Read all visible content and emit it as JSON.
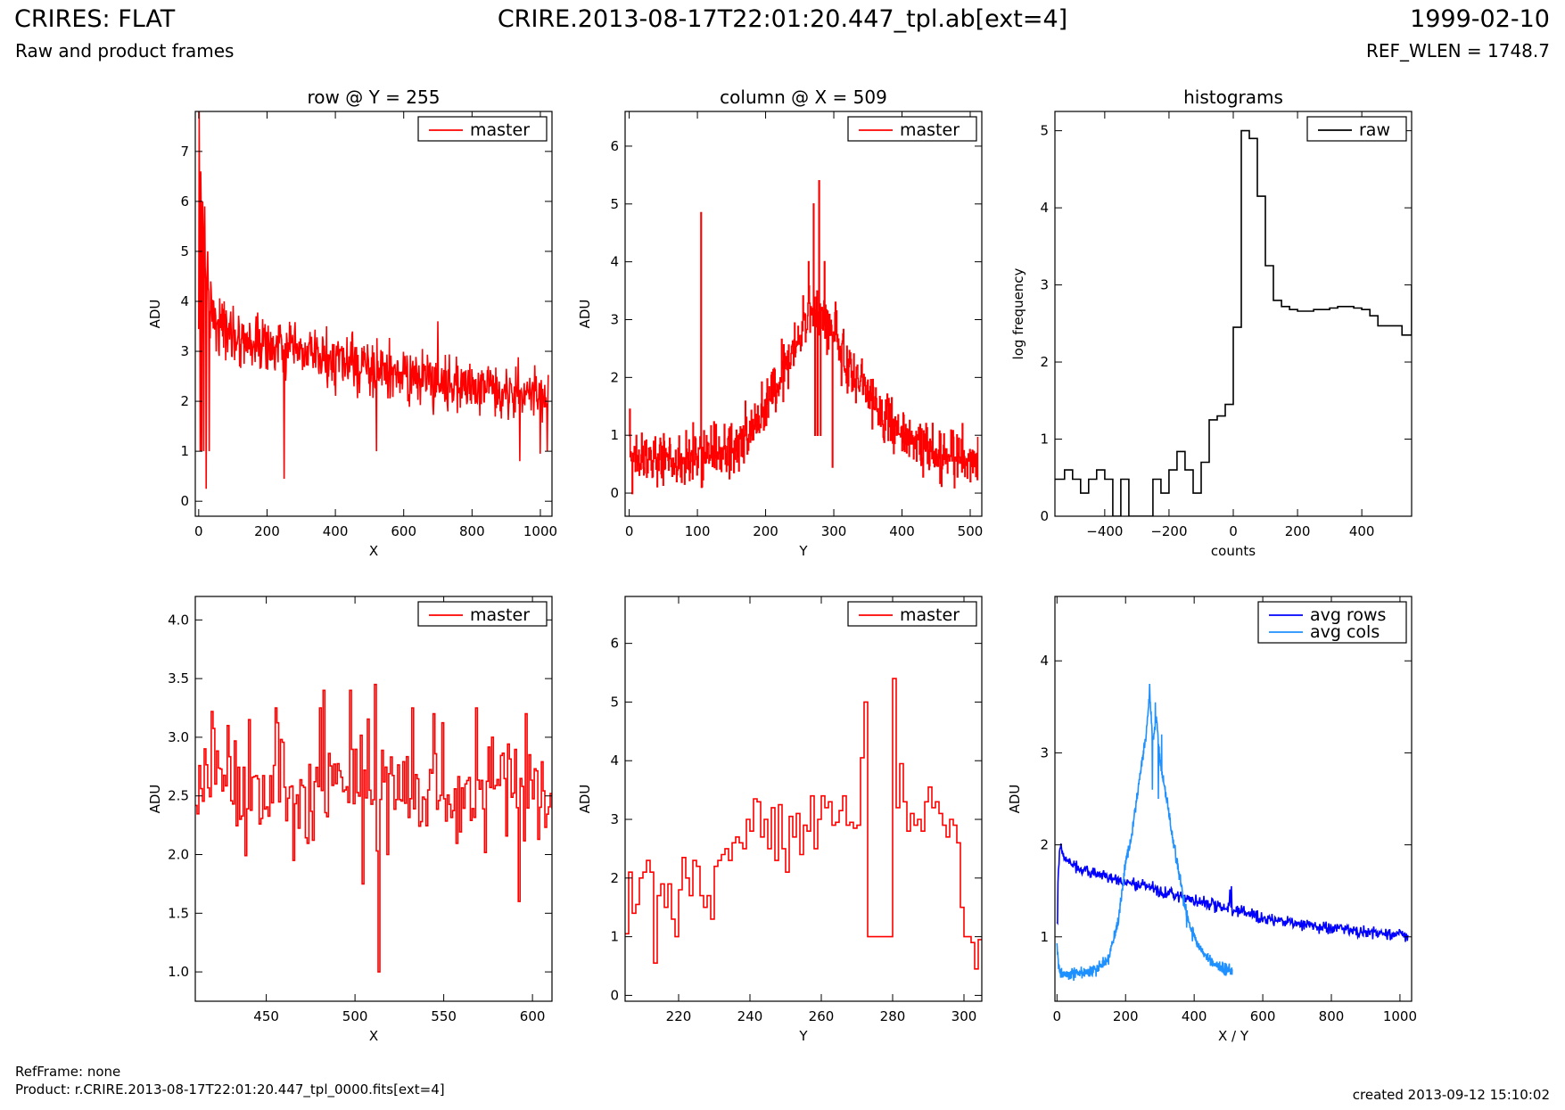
{
  "header": {
    "title_left": "CRIRES: FLAT",
    "subtitle_left": "Raw and product frames",
    "title_center": "CRIRE.2013-08-17T22:01:20.447_tpl.ab[ext=4]",
    "title_right": "1999-02-10",
    "subtitle_right": "REF_WLEN = 1748.7"
  },
  "footer": {
    "ref_frame": "RefFrame: none",
    "product": "Product: r.CRIRE.2013-08-17T22:01:20.447_tpl_0000.fits[ext=4]",
    "created": "created 2013-09-12 15:10:02"
  },
  "colors": {
    "master": "#ff0000",
    "raw": "#000000",
    "avg_rows": "#0000ff",
    "avg_cols": "#1e90ff"
  },
  "chart_data": [
    {
      "type": "line",
      "title": "row @ Y = 255",
      "xlabel": "X",
      "ylabel": "ADU",
      "xlim": [
        -10,
        1034
      ],
      "ylim": [
        -0.3,
        7.8
      ],
      "xticks": [
        0,
        200,
        400,
        600,
        800,
        1000
      ],
      "yticks": [
        0,
        1,
        2,
        3,
        4,
        5,
        6,
        7
      ],
      "legend_loc": "top-right",
      "series": [
        {
          "name": "master",
          "color": "#ff0000",
          "drawstyle": "line",
          "noise": 0.42,
          "x": [
            0,
            5,
            10,
            15,
            20,
            25,
            30,
            40,
            50,
            70,
            100,
            150,
            200,
            300,
            400,
            500,
            600,
            700,
            800,
            900,
            1000,
            1023
          ],
          "y": [
            3.0,
            6.5,
            5.5,
            5.0,
            4.5,
            4.2,
            4.0,
            3.8,
            3.6,
            3.5,
            3.35,
            3.2,
            3.1,
            2.95,
            2.8,
            2.65,
            2.5,
            2.4,
            2.3,
            2.25,
            2.1,
            2.0
          ],
          "spikes": [
            [
              2,
              7.8
            ],
            [
              4,
              1.0
            ],
            [
              6,
              6.6
            ],
            [
              9,
              1.0
            ],
            [
              12,
              6.0
            ],
            [
              15,
              1.0
            ],
            [
              18,
              5.9
            ],
            [
              22,
              0.25
            ],
            [
              26,
              5.0
            ],
            [
              30,
              1.0
            ],
            [
              35,
              4.4
            ],
            [
              250,
              0.45
            ],
            [
              520,
              1.0
            ],
            [
              700,
              3.6
            ],
            [
              940,
              0.8
            ],
            [
              1000,
              0.95
            ],
            [
              1020,
              1.0
            ]
          ]
        }
      ]
    },
    {
      "type": "line",
      "title": "column @ X = 509",
      "xlabel": "Y",
      "ylabel": "ADU",
      "xlim": [
        -6,
        517
      ],
      "ylim": [
        -0.4,
        6.6
      ],
      "xticks": [
        0,
        100,
        200,
        300,
        400,
        500
      ],
      "yticks": [
        0,
        1,
        2,
        3,
        4,
        5,
        6
      ],
      "legend_loc": "top-right",
      "series": [
        {
          "name": "master",
          "color": "#ff0000",
          "drawstyle": "steps",
          "noise": 0.38,
          "x": [
            0,
            50,
            100,
            150,
            180,
            200,
            220,
            240,
            255,
            265,
            275,
            285,
            300,
            320,
            340,
            360,
            380,
            400,
            450,
            500,
            511
          ],
          "y": [
            0.6,
            0.6,
            0.65,
            0.75,
            1.1,
            1.5,
            2.0,
            2.5,
            2.9,
            3.0,
            3.2,
            3.0,
            2.7,
            2.2,
            1.9,
            1.6,
            1.2,
            1.0,
            0.7,
            0.6,
            0.6
          ],
          "spikes": [
            [
              1,
              1.45
            ],
            [
              105,
              4.85
            ],
            [
              106,
              0.1
            ],
            [
              263,
              4.0
            ],
            [
              270,
              5.0
            ],
            [
              272,
              1.0
            ],
            [
              276,
              1.0
            ],
            [
              278,
              5.4
            ],
            [
              280,
              1.0
            ],
            [
              286,
              4.0
            ],
            [
              298,
              0.45
            ],
            [
              302,
              3.3
            ],
            [
              509,
              0.35
            ]
          ]
        }
      ]
    },
    {
      "type": "line",
      "title": "histograms",
      "xlabel": "counts",
      "ylabel": "log frequency",
      "xlim": [
        -555,
        555
      ],
      "ylim": [
        0,
        5.25
      ],
      "xticks": [
        -400,
        -200,
        0,
        200,
        400
      ],
      "yticks": [
        0,
        1,
        2,
        3,
        4,
        5
      ],
      "legend_loc": "top-right",
      "series": [
        {
          "name": "raw",
          "color": "#000000",
          "drawstyle": "steps",
          "x": [
            -555,
            -525,
            -500,
            -475,
            -450,
            -425,
            -400,
            -375,
            -350,
            -325,
            -300,
            -275,
            -250,
            -225,
            -200,
            -175,
            -150,
            -125,
            -100,
            -75,
            -50,
            -25,
            0,
            25,
            50,
            75,
            100,
            125,
            150,
            175,
            200,
            225,
            250,
            275,
            300,
            325,
            350,
            375,
            400,
            425,
            450,
            475,
            500,
            525,
            555
          ],
          "y": [
            0.48,
            0.6,
            0.48,
            0.3,
            0.48,
            0.6,
            0.48,
            0.0,
            0.48,
            0.0,
            0.0,
            0.0,
            0.48,
            0.3,
            0.6,
            0.84,
            0.6,
            0.3,
            0.7,
            1.25,
            1.3,
            1.45,
            2.45,
            5.0,
            4.9,
            4.15,
            3.25,
            2.8,
            2.72,
            2.68,
            2.66,
            2.66,
            2.68,
            2.68,
            2.7,
            2.72,
            2.72,
            2.7,
            2.68,
            2.6,
            2.47,
            2.47,
            2.47,
            2.35,
            3.0
          ]
        }
      ]
    },
    {
      "type": "line",
      "xlabel": "X",
      "ylabel": "ADU",
      "xlim": [
        410,
        611
      ],
      "ylim": [
        0.75,
        4.2
      ],
      "xticks": [
        450,
        500,
        550,
        600
      ],
      "yticks": [
        1.0,
        1.5,
        2.0,
        2.5,
        3.0,
        3.5,
        4.0
      ],
      "legend_loc": "top-right",
      "series": [
        {
          "name": "master",
          "color": "#ff0000",
          "drawstyle": "steps",
          "step": 1,
          "noise": 0.33,
          "x": [
            410,
            611
          ],
          "y": [
            2.6,
            2.55
          ],
          "spikes": [
            [
              419,
              3.22
            ],
            [
              428,
              3.1
            ],
            [
              440,
              3.15
            ],
            [
              455,
              3.25
            ],
            [
              465,
              1.95
            ],
            [
              480,
              3.25
            ],
            [
              482,
              3.4
            ],
            [
              497,
              3.4
            ],
            [
              504,
              1.75
            ],
            [
              511,
              3.45
            ],
            [
              513,
              1.0
            ],
            [
              518,
              2.0
            ],
            [
              532,
              3.25
            ],
            [
              544,
              3.2
            ],
            [
              568,
              3.25
            ],
            [
              577,
              3.0
            ],
            [
              592,
              1.6
            ],
            [
              596,
              3.2
            ]
          ]
        }
      ]
    },
    {
      "type": "line",
      "xlabel": "Y",
      "ylabel": "ADU",
      "xlim": [
        205,
        305
      ],
      "ylim": [
        -0.1,
        6.8
      ],
      "xticks": [
        220,
        240,
        260,
        280,
        300
      ],
      "yticks": [
        0,
        1,
        2,
        3,
        4,
        5,
        6
      ],
      "legend_loc": "top-right",
      "series": [
        {
          "name": "master",
          "color": "#ff0000",
          "drawstyle": "steps",
          "x": [
            205,
            206,
            207,
            208,
            209,
            210,
            211,
            212,
            213,
            214,
            215,
            216,
            217,
            218,
            219,
            220,
            221,
            222,
            223,
            224,
            225,
            226,
            227,
            228,
            229,
            230,
            231,
            232,
            233,
            234,
            235,
            236,
            237,
            238,
            239,
            240,
            241,
            242,
            243,
            244,
            245,
            246,
            247,
            248,
            249,
            250,
            251,
            252,
            253,
            254,
            255,
            256,
            257,
            258,
            259,
            260,
            261,
            262,
            263,
            264,
            265,
            266,
            267,
            268,
            269,
            270,
            271,
            272,
            273,
            274,
            275,
            276,
            277,
            278,
            279,
            280,
            281,
            282,
            283,
            284,
            285,
            286,
            287,
            288,
            289,
            290,
            291,
            292,
            293,
            294,
            295,
            296,
            297,
            298,
            299,
            300,
            301,
            302,
            303,
            304,
            305
          ],
          "y": [
            1.05,
            2.1,
            1.4,
            1.55,
            2.0,
            2.1,
            2.3,
            2.1,
            0.55,
            1.7,
            1.9,
            1.5,
            1.9,
            1.3,
            1.0,
            1.8,
            2.35,
            2.0,
            1.7,
            2.3,
            2.2,
            1.7,
            1.5,
            1.7,
            1.3,
            2.2,
            2.3,
            2.4,
            2.5,
            2.3,
            2.6,
            2.7,
            2.6,
            2.5,
            3.0,
            2.8,
            3.35,
            3.3,
            2.7,
            3.0,
            2.5,
            3.2,
            2.3,
            3.25,
            2.5,
            2.1,
            3.05,
            2.7,
            3.1,
            2.4,
            2.9,
            2.8,
            3.4,
            2.5,
            3.0,
            3.4,
            3.2,
            3.3,
            2.9,
            2.95,
            3.15,
            3.4,
            2.9,
            2.95,
            2.85,
            2.9,
            4.05,
            5.0,
            1.0,
            1.0,
            1.0,
            1.0,
            1.0,
            1.0,
            1.0,
            5.4,
            3.2,
            3.95,
            3.3,
            2.8,
            3.1,
            2.9,
            3.0,
            2.8,
            3.3,
            3.55,
            3.2,
            3.3,
            3.1,
            2.9,
            2.7,
            3.0,
            2.9,
            2.6,
            1.5,
            1.0,
            1.0,
            0.9,
            0.45,
            0.95,
            0.95
          ]
        }
      ]
    },
    {
      "type": "line",
      "xlabel": "X / Y",
      "ylabel": "ADU",
      "xlim": [
        -6,
        1034
      ],
      "ylim": [
        0.3,
        4.7
      ],
      "xticks": [
        0,
        200,
        400,
        600,
        800,
        1000
      ],
      "yticks": [
        1,
        2,
        3,
        4
      ],
      "legend_loc": "top-right",
      "series": [
        {
          "name": "avg rows",
          "color": "#0000ff",
          "drawstyle": "line",
          "noise": 0.05,
          "x": [
            0,
            3,
            8,
            15,
            25,
            40,
            60,
            100,
            200,
            300,
            400,
            500,
            505,
            510,
            520,
            600,
            700,
            800,
            900,
            1000,
            1023
          ],
          "y": [
            1.2,
            1.6,
            2.0,
            1.9,
            1.85,
            1.8,
            1.75,
            1.7,
            1.6,
            1.5,
            1.4,
            1.3,
            1.5,
            1.25,
            1.3,
            1.2,
            1.15,
            1.1,
            1.05,
            1.02,
            1.0
          ],
          "spikes": [
            [
              1,
              1.15
            ],
            [
              508,
              1.55
            ]
          ]
        },
        {
          "name": "avg cols",
          "color": "#1e90ff",
          "drawstyle": "line",
          "noise": 0.05,
          "x": [
            0,
            3,
            8,
            20,
            50,
            100,
            150,
            180,
            200,
            220,
            240,
            260,
            270,
            280,
            290,
            300,
            320,
            340,
            360,
            380,
            400,
            430,
            460,
            490,
            511
          ],
          "y": [
            0.9,
            0.75,
            0.62,
            0.6,
            0.6,
            0.62,
            0.75,
            1.2,
            1.8,
            2.15,
            2.7,
            3.2,
            3.65,
            3.1,
            3.4,
            2.9,
            2.5,
            2.0,
            1.6,
            1.2,
            1.0,
            0.8,
            0.7,
            0.65,
            0.63
          ],
          "spikes": [
            [
              270,
              3.75
            ],
            [
              278,
              2.6
            ],
            [
              287,
              3.55
            ],
            [
              296,
              2.5
            ],
            [
              305,
              3.2
            ],
            [
              378,
              1.1
            ],
            [
              395,
              0.95
            ]
          ]
        }
      ]
    }
  ]
}
